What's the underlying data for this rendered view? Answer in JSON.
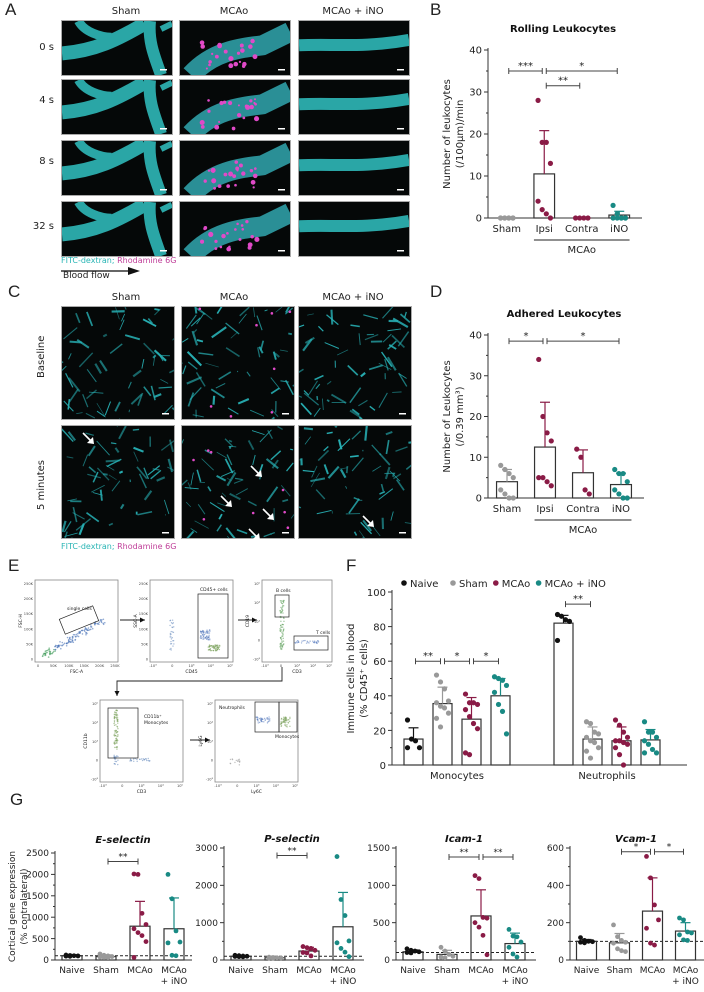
{
  "colors": {
    "naive": "#111111",
    "sham": "#999999",
    "mcao": "#8a1b46",
    "ino": "#198a84",
    "fitc": "#2ab5b5",
    "rhodamine": "#c0409a"
  },
  "panelA": {
    "label": "A",
    "columns": [
      "Sham",
      "MCAo",
      "MCAo + iNO"
    ],
    "rows": [
      "0 s",
      "4 s",
      "8 s",
      "32 s"
    ],
    "legend_fitc": "FITC-dextran;",
    "legend_rhod": "Rhodamine 6G",
    "flow_label": "Blood flow"
  },
  "panelC": {
    "label": "C",
    "columns": [
      "Sham",
      "MCAo",
      "MCAo + iNO"
    ],
    "rows": [
      "Baseline",
      "5 minutes"
    ],
    "legend_fitc": "FITC-dextran;",
    "legend_rhod": "Rhodamine 6G"
  },
  "panelE": {
    "label": "E",
    "plots": [
      {
        "x": "FSC-A",
        "y": "FSC-H",
        "gate": "single cells",
        "xticks": [
          "0",
          "50K",
          "100K",
          "150K",
          "200K",
          "250K"
        ],
        "yticks": [
          "0",
          "50K",
          "100K",
          "150K",
          "200K",
          "250K"
        ]
      },
      {
        "x": "CD45",
        "y": "SSC-A",
        "gate": "CD45+ cells",
        "xticks": [
          "-10³",
          "0",
          "10³",
          "10⁴",
          "10⁵"
        ],
        "yticks": [
          "0",
          "50K",
          "100K",
          "150K",
          "200K",
          "250K"
        ]
      },
      {
        "x": "CD3",
        "y": "CD19",
        "gates": [
          "B cells",
          "T cells"
        ],
        "xticks": [
          "-10³",
          "0",
          "10³",
          "10⁴",
          "10⁵"
        ],
        "yticks": [
          "-10³",
          "0",
          "10³",
          "10⁴",
          "10⁵"
        ]
      },
      {
        "x": "CD3",
        "y": "CD11b",
        "gate": "CD11b+ Monocytes",
        "xticks": [
          "-10³",
          "0",
          "10³",
          "10⁴",
          "10⁵"
        ],
        "yticks": [
          "-10³",
          "0",
          "10³",
          "10⁴",
          "10⁵"
        ]
      },
      {
        "x": "Ly6C",
        "y": "Ly6G",
        "gates": [
          "Neutrophils",
          "Monocytes"
        ],
        "xticks": [
          "-10³",
          "0",
          "10³",
          "10⁴",
          "10⁵"
        ],
        "yticks": [
          "-10³",
          "0",
          "10³",
          "10⁴",
          "10⁵"
        ]
      }
    ]
  },
  "chart_data": [
    {
      "id": "B",
      "type": "bar",
      "title": "Rolling Leukocytes",
      "ylabel": "Number of leukocytes (/100µm)/min",
      "categories": [
        "Sham",
        "Ipsi",
        "Contra",
        "iNO"
      ],
      "group_label": "MCAo",
      "group_span": [
        "Ipsi",
        "iNO"
      ],
      "ylim": [
        0,
        40
      ],
      "yticks": [
        0,
        10,
        20,
        30,
        40
      ],
      "means": [
        0,
        10.5,
        0,
        0.7
      ],
      "sd": [
        0,
        10.3,
        0,
        0.9
      ],
      "points": [
        [
          0,
          0,
          0,
          0,
          0,
          0,
          0,
          0
        ],
        [
          28,
          18,
          18,
          13,
          4,
          2,
          1,
          0
        ],
        [
          0,
          0,
          0,
          0
        ],
        [
          3,
          1,
          0,
          0,
          0,
          0,
          0,
          0
        ]
      ],
      "point_colors": [
        "sham",
        "mcao",
        "mcao",
        "ino"
      ],
      "significance": [
        {
          "from": "Sham",
          "to": "Ipsi",
          "label": "***",
          "y": 35
        },
        {
          "from": "Ipsi",
          "to": "iNO",
          "label": "*",
          "y": 35
        },
        {
          "from": "Ipsi",
          "to": "Contra",
          "label": "**",
          "y": 31.5
        }
      ]
    },
    {
      "id": "D",
      "type": "bar",
      "title": "Adhered Leukocytes",
      "ylabel": "Number of Leukocytes (/0.39 mm³)",
      "categories": [
        "Sham",
        "Ipsi",
        "Contra",
        "iNO"
      ],
      "group_label": "MCAo",
      "group_span": [
        "Ipsi",
        "iNO"
      ],
      "ylim": [
        0,
        40
      ],
      "yticks": [
        0,
        10,
        20,
        30,
        40
      ],
      "means": [
        4,
        12.5,
        6.2,
        3.3
      ],
      "sd": [
        3,
        11,
        5.6,
        2.8
      ],
      "points": [
        [
          8,
          7,
          6,
          5,
          2,
          1,
          0,
          0
        ],
        [
          34,
          20,
          16,
          14,
          5,
          5,
          4,
          3
        ],
        [
          12,
          10,
          2,
          1
        ],
        [
          7,
          6,
          6,
          4,
          2,
          1,
          0,
          0
        ]
      ],
      "point_colors": [
        "sham",
        "mcao",
        "mcao",
        "ino"
      ],
      "significance": [
        {
          "from": "Sham",
          "to": "Ipsi",
          "label": "*",
          "y": 38.5
        },
        {
          "from": "Ipsi",
          "to": "iNO",
          "label": "*",
          "y": 38.5
        }
      ]
    },
    {
      "id": "F",
      "type": "bar",
      "title": "",
      "ylabel": "Immune cells in blood (% CD45+ cells)",
      "categories": [
        "Monocytes",
        "Neutrophils"
      ],
      "legend": [
        "Naive",
        "Sham",
        "MCAo",
        "MCAo + iNO"
      ],
      "legend_position": "top",
      "ylim": [
        0,
        100
      ],
      "yticks": [
        0,
        20,
        40,
        60,
        80,
        100
      ],
      "series": [
        {
          "name": "Naive",
          "color": "naive",
          "means": [
            15,
            82
          ],
          "sd": [
            6.5,
            4.5
          ],
          "points": [
            [
              26,
              15,
              14,
              10,
              10
            ],
            [
              87,
              86,
              84,
              83,
              72
            ]
          ]
        },
        {
          "name": "Sham",
          "color": "sham",
          "means": [
            35.5,
            15
          ],
          "sd": [
            9.5,
            7
          ],
          "points": [
            [
              52,
              48,
              44,
              37,
              36,
              34,
              33,
              30,
              27,
              22
            ],
            [
              25,
              24,
              19,
              18,
              16,
              14,
              13,
              10,
              8,
              4
            ]
          ]
        },
        {
          "name": "MCAo",
          "color": "mcao",
          "means": [
            26.5,
            14
          ],
          "sd": [
            12.5,
            8
          ],
          "points": [
            [
              41,
              36,
              36,
              35,
              32,
              28,
              24,
              21,
              7,
              6
            ],
            [
              26,
              23,
              19,
              16,
              14,
              14,
              13,
              12,
              10,
              6,
              0
            ]
          ]
        },
        {
          "name": "MCAo + iNO",
          "color": "ino",
          "means": [
            40,
            14.5
          ],
          "sd": [
            10,
            6
          ],
          "points": [
            [
              51,
              50,
              49,
              46,
              42,
              35,
              31,
              18
            ],
            [
              25,
              19,
              19,
              16,
              14,
              12,
              9,
              7,
              7
            ]
          ]
        }
      ],
      "significance": [
        {
          "group": "Monocytes",
          "from": "Naive",
          "to": "Sham",
          "label": "**",
          "y": 60
        },
        {
          "group": "Monocytes",
          "from": "Sham",
          "to": "MCAo",
          "label": "*",
          "y": 60
        },
        {
          "group": "Monocytes",
          "from": "MCAo",
          "to": "MCAo + iNO",
          "label": "*",
          "y": 60
        },
        {
          "group": "Neutrophils",
          "from": "Naive",
          "to": "Sham",
          "label": "**",
          "y": 93
        }
      ]
    },
    {
      "id": "G1",
      "type": "bar",
      "title": "E-selectin",
      "ylabel": "Cortical gene expression (% contralateral)",
      "categories": [
        "Naive",
        "Sham",
        "MCAo",
        "MCAo + iNO"
      ],
      "ylim": [
        0,
        2500
      ],
      "yticks": [
        0,
        500,
        1000,
        1500,
        2000,
        2500
      ],
      "reference_line": 100,
      "means": [
        100,
        80,
        790,
        730
      ],
      "sd": [
        25,
        40,
        580,
        720
      ],
      "points": [
        [
          115,
          105,
          100,
          95,
          90,
          85
        ],
        [
          140,
          110,
          95,
          80,
          70,
          60,
          55
        ],
        [
          2010,
          2000,
          1090,
          830,
          730,
          640,
          570,
          430,
          60
        ],
        [
          2000,
          1430,
          680,
          420,
          400,
          110,
          100
        ]
      ],
      "point_colors": [
        "naive",
        "sham",
        "mcao",
        "ino"
      ],
      "significance": [
        {
          "from": "Sham",
          "to": "MCAo",
          "label": "**",
          "y": 2300
        }
      ]
    },
    {
      "id": "G2",
      "type": "bar",
      "title": "P-selectin",
      "ylabel": "",
      "categories": [
        "Naive",
        "Sham",
        "MCAo",
        "MCAo + iNO"
      ],
      "ylim": [
        0,
        3000
      ],
      "yticks": [
        0,
        1000,
        2000,
        3000
      ],
      "reference_line": 100,
      "means": [
        100,
        60,
        240,
        890
      ],
      "sd": [
        20,
        15,
        100,
        920
      ],
      "points": [
        [
          125,
          115,
          105,
          100,
          95,
          90,
          85
        ],
        [
          75,
          65,
          60,
          55,
          50,
          45
        ],
        [
          360,
          330,
          310,
          260,
          200,
          190,
          110
        ],
        [
          2770,
          1620,
          1190,
          510,
          460,
          310,
          210,
          90
        ]
      ],
      "point_colors": [
        "naive",
        "sham",
        "mcao",
        "ino"
      ],
      "significance": [
        {
          "from": "Sham",
          "to": "MCAo",
          "label": "**",
          "y": 2800
        }
      ]
    },
    {
      "id": "G3",
      "type": "bar",
      "title": "Icam-1",
      "ylabel": "",
      "categories": [
        "Naive",
        "Sham",
        "MCAo",
        "MCAo + iNO"
      ],
      "ylim": [
        0,
        1500
      ],
      "yticks": [
        0,
        500,
        1000,
        1500
      ],
      "reference_line": 100,
      "means": [
        110,
        75,
        590,
        220
      ],
      "sd": [
        25,
        55,
        350,
        140
      ],
      "points": [
        [
          150,
          130,
          120,
          110,
          100,
          95
        ],
        [
          170,
          120,
          75,
          50,
          40,
          30
        ],
        [
          1130,
          1090,
          570,
          560,
          500,
          440,
          330,
          70
        ],
        [
          410,
          320,
          310,
          240,
          170,
          80,
          40
        ]
      ],
      "point_colors": [
        "naive",
        "sham",
        "mcao",
        "ino"
      ],
      "significance": [
        {
          "from": "Sham",
          "to": "MCAo",
          "label": "**",
          "y": 1380
        },
        {
          "from": "MCAo",
          "to": "MCAo + iNO",
          "label": "**",
          "y": 1380
        }
      ]
    },
    {
      "id": "G4",
      "type": "bar",
      "title": "Vcam-1",
      "ylabel": "",
      "categories": [
        "Naive",
        "Sham",
        "MCAo",
        "MCAo + iNO"
      ],
      "ylim": [
        0,
        600
      ],
      "yticks": [
        0,
        200,
        400,
        600
      ],
      "reference_line": 100,
      "means": [
        100,
        92,
        262,
        155
      ],
      "sd": [
        10,
        50,
        178,
        45
      ],
      "points": [
        [
          120,
          105,
          100,
          98,
          95,
          92
        ],
        [
          188,
          125,
          105,
          95,
          90,
          60,
          50,
          45
        ],
        [
          555,
          440,
          295,
          215,
          170,
          90,
          80
        ],
        [
          225,
          215,
          150,
          145,
          135,
          108,
          105
        ]
      ],
      "point_colors": [
        "naive",
        "sham",
        "mcao",
        "ino"
      ],
      "significance": [
        {
          "from": "Sham",
          "to": "MCAo",
          "label": "*",
          "y": 580
        },
        {
          "from": "MCAo",
          "to": "MCAo + iNO",
          "label": "*",
          "y": 580
        }
      ]
    }
  ],
  "panel_labels": {
    "B": "B",
    "D": "D",
    "E": "E",
    "F": "F",
    "G": "G"
  }
}
